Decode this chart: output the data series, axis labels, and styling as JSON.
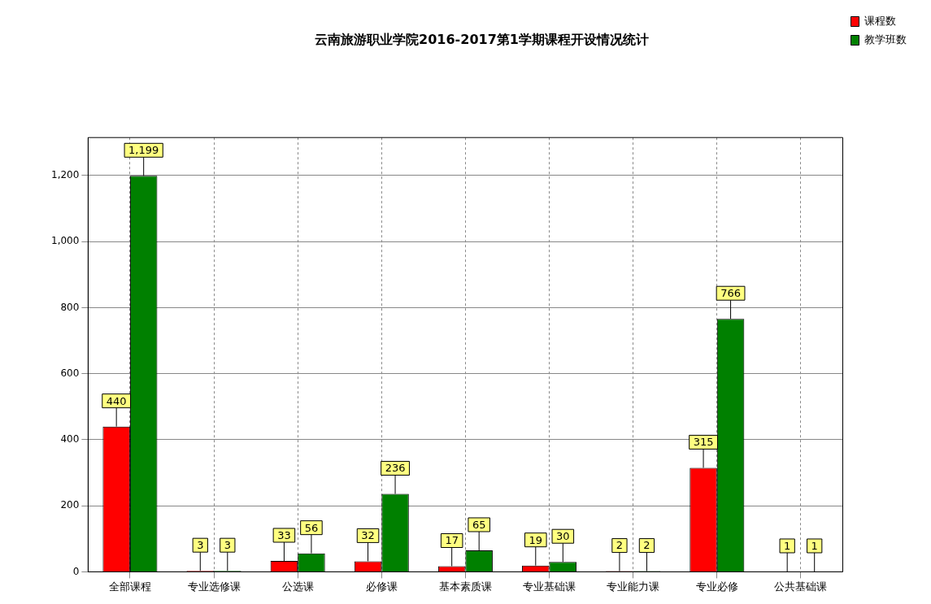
{
  "chart_data": {
    "type": "bar",
    "title": "云南旅游职业学院2016-2017第1学期课程开设情况统计",
    "categories": [
      "全部课程",
      "专业选修课",
      "公选课",
      "必修课",
      "基本素质课",
      "专业基础课",
      "专业能力课",
      "专业必修",
      "公共基础课"
    ],
    "series": [
      {
        "name": "课程数",
        "color": "#ff0000",
        "values": [
          440,
          3,
          33,
          32,
          17,
          19,
          2,
          315,
          1
        ],
        "value_labels": [
          "440",
          "3",
          "33",
          "32",
          "17",
          "19",
          "2",
          "315",
          "1"
        ]
      },
      {
        "name": "教学班数",
        "color": "#008000",
        "values": [
          1199,
          3,
          56,
          236,
          65,
          30,
          2,
          766,
          1
        ],
        "value_labels": [
          "1,199",
          "3",
          "56",
          "236",
          "65",
          "30",
          "2",
          "766",
          "1"
        ]
      }
    ],
    "ylim": [
      0,
      1315
    ],
    "yticks": [
      0,
      200,
      400,
      600,
      800,
      {
        "value": 1000,
        "label": "1,000"
      },
      {
        "value": 1200,
        "label": "1,200"
      }
    ],
    "grid": true,
    "legend": "top right"
  }
}
